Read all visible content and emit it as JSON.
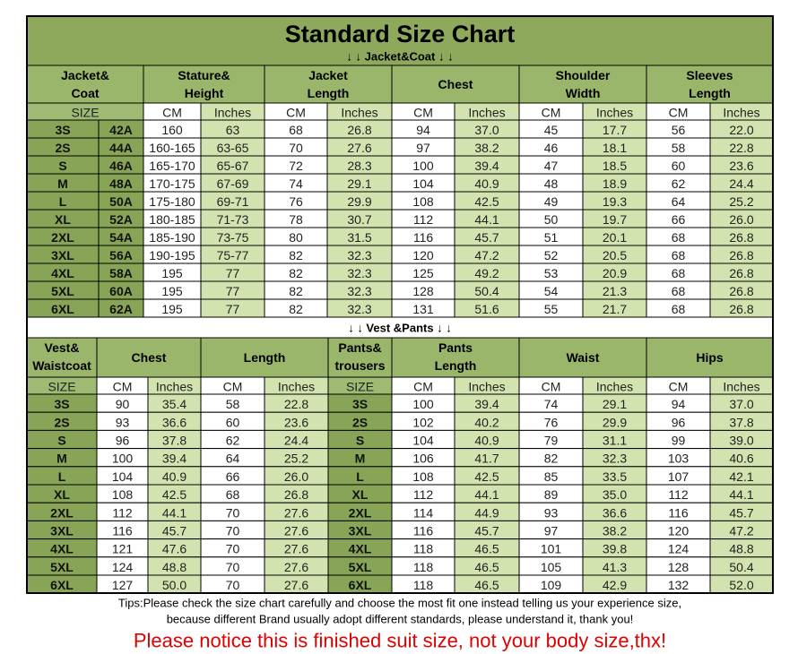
{
  "title": "Standard Size Chart",
  "jacket_section": {
    "label": "↓ ↓  Jacket&Coat ↓ ↓",
    "headers": [
      [
        "Jacket&",
        "Coat"
      ],
      [
        "Stature&",
        "Height"
      ],
      [
        "Jacket",
        "Length"
      ],
      "Chest",
      [
        "Shoulder",
        "Width"
      ],
      [
        "Sleeves",
        "Length"
      ]
    ],
    "units": [
      "SIZE",
      "CM",
      "Inches",
      "CM",
      "Inches",
      "CM",
      "Inches",
      "CM",
      "Inches",
      "CM",
      "Inches"
    ],
    "rows": [
      [
        "3S",
        "42A",
        "160",
        "63",
        "68",
        "26.8",
        "94",
        "37.0",
        "45",
        "17.7",
        "56",
        "22.0"
      ],
      [
        "2S",
        "44A",
        "160-165",
        "63-65",
        "70",
        "27.6",
        "97",
        "38.2",
        "46",
        "18.1",
        "58",
        "22.8"
      ],
      [
        "S",
        "46A",
        "165-170",
        "65-67",
        "72",
        "28.3",
        "100",
        "39.4",
        "47",
        "18.5",
        "60",
        "23.6"
      ],
      [
        "M",
        "48A",
        "170-175",
        "67-69",
        "74",
        "29.1",
        "104",
        "40.9",
        "48",
        "18.9",
        "62",
        "24.4"
      ],
      [
        "L",
        "50A",
        "175-180",
        "69-71",
        "76",
        "29.9",
        "108",
        "42.5",
        "49",
        "19.3",
        "64",
        "25.2"
      ],
      [
        "XL",
        "52A",
        "180-185",
        "71-73",
        "78",
        "30.7",
        "112",
        "44.1",
        "50",
        "19.7",
        "66",
        "26.0"
      ],
      [
        "2XL",
        "54A",
        "185-190",
        "73-75",
        "80",
        "31.5",
        "116",
        "45.7",
        "51",
        "20.1",
        "68",
        "26.8"
      ],
      [
        "3XL",
        "56A",
        "190-195",
        "75-77",
        "82",
        "32.3",
        "120",
        "47.2",
        "52",
        "20.5",
        "68",
        "26.8"
      ],
      [
        "4XL",
        "58A",
        "195",
        "77",
        "82",
        "32.3",
        "125",
        "49.2",
        "53",
        "20.9",
        "68",
        "26.8"
      ],
      [
        "5XL",
        "60A",
        "195",
        "77",
        "82",
        "32.3",
        "128",
        "50.4",
        "54",
        "21.3",
        "68",
        "26.8"
      ],
      [
        "6XL",
        "62A",
        "195",
        "77",
        "82",
        "32.3",
        "131",
        "51.6",
        "55",
        "21.7",
        "68",
        "26.8"
      ]
    ]
  },
  "vest_section": {
    "label": "↓ ↓  Vest &Pants ↓ ↓",
    "headers": [
      [
        "Vest&",
        "Waistcoat"
      ],
      "Chest",
      "Length",
      [
        "Pants&",
        "trousers"
      ],
      [
        "Pants",
        "Length"
      ],
      "Waist",
      "Hips"
    ],
    "units": [
      "SIZE",
      "CM",
      "Inches",
      "CM",
      "Inches",
      "SIZE",
      "CM",
      "Inches",
      "CM",
      "Inches",
      "CM",
      "Inches"
    ],
    "rows": [
      [
        "3S",
        "90",
        "35.4",
        "58",
        "22.8",
        "3S",
        "100",
        "39.4",
        "74",
        "29.1",
        "94",
        "37.0"
      ],
      [
        "2S",
        "93",
        "36.6",
        "60",
        "23.6",
        "2S",
        "102",
        "40.2",
        "76",
        "29.9",
        "96",
        "37.8"
      ],
      [
        "S",
        "96",
        "37.8",
        "62",
        "24.4",
        "S",
        "104",
        "40.9",
        "79",
        "31.1",
        "99",
        "39.0"
      ],
      [
        "M",
        "100",
        "39.4",
        "64",
        "25.2",
        "M",
        "106",
        "41.7",
        "82",
        "32.3",
        "103",
        "40.6"
      ],
      [
        "L",
        "104",
        "40.9",
        "66",
        "26.0",
        "L",
        "108",
        "42.5",
        "85",
        "33.5",
        "107",
        "42.1"
      ],
      [
        "XL",
        "108",
        "42.5",
        "68",
        "26.8",
        "XL",
        "112",
        "44.1",
        "89",
        "35.0",
        "112",
        "44.1"
      ],
      [
        "2XL",
        "112",
        "44.1",
        "70",
        "27.6",
        "2XL",
        "114",
        "44.9",
        "93",
        "36.6",
        "116",
        "45.7"
      ],
      [
        "3XL",
        "116",
        "45.7",
        "70",
        "27.6",
        "3XL",
        "116",
        "45.7",
        "97",
        "38.2",
        "120",
        "47.2"
      ],
      [
        "4XL",
        "121",
        "47.6",
        "70",
        "27.6",
        "4XL",
        "118",
        "46.5",
        "101",
        "39.8",
        "124",
        "48.8"
      ],
      [
        "5XL",
        "124",
        "48.8",
        "70",
        "27.6",
        "5XL",
        "118",
        "46.5",
        "105",
        "41.3",
        "128",
        "50.4"
      ],
      [
        "6XL",
        "127",
        "50.0",
        "70",
        "27.6",
        "6XL",
        "118",
        "46.5",
        "109",
        "42.9",
        "132",
        "52.0"
      ]
    ]
  },
  "tips": [
    "Tips:Please check the size chart carefully and choose the most fit one instead telling us your experience size,",
    "because different Brand usually adopt different standards, please understand it, thank you!"
  ],
  "notice": "Please notice this is finished suit size, not your body size,thx!"
}
